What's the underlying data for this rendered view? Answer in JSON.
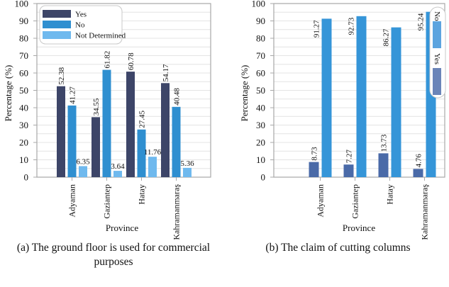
{
  "chart_data": [
    {
      "type": "bar",
      "caption": "(a) The ground floor is used for commercial purposes",
      "caption_line1": "(a) The ground floor is used for commercial",
      "caption_line2": "purposes",
      "xlabel": "Province",
      "ylabel": "Percentage (%)",
      "ylim": [
        0,
        100
      ],
      "yticks": [
        0,
        10,
        20,
        30,
        40,
        50,
        60,
        70,
        80,
        90,
        100
      ],
      "grid": true,
      "legend_position": "top-left",
      "categories": [
        "Adyaman",
        "Gaziantep",
        "Hatay",
        "Kahramanmaraş"
      ],
      "series": [
        {
          "name": "Yes",
          "color": "#3d4568",
          "values": [
            52.38,
            34.55,
            60.78,
            54.17
          ],
          "labels": [
            "52.38",
            "34.55",
            "60.78",
            "54.17"
          ]
        },
        {
          "name": "No",
          "color": "#2f8fd0",
          "values": [
            41.27,
            61.82,
            27.45,
            40.48
          ],
          "labels": [
            "41.27",
            "61.82",
            "27.45",
            "40.48"
          ]
        },
        {
          "name": "Not Determined",
          "color": "#6fb9ee",
          "values": [
            6.35,
            3.64,
            11.76,
            5.36
          ],
          "labels": [
            "6.35",
            "3.64",
            "11.76",
            "5.36"
          ]
        }
      ]
    },
    {
      "type": "bar",
      "caption": "(b) The claim of cutting columns",
      "xlabel": "Province",
      "ylabel": "Percentage (%)",
      "ylim": [
        0,
        100
      ],
      "yticks": [
        0,
        10,
        20,
        30,
        40,
        50,
        60,
        70,
        80,
        90,
        100
      ],
      "grid": true,
      "legend_position": "top-right",
      "categories": [
        "Adyaman",
        "Gaziantep",
        "Hatay",
        "Kahramanmaraş"
      ],
      "series": [
        {
          "name": "Yes",
          "color": "#4a6aa8",
          "values": [
            8.73,
            7.27,
            13.73,
            4.76
          ],
          "labels": [
            "8.73",
            "7.27",
            "13.73",
            "4.76"
          ]
        },
        {
          "name": "No",
          "color": "#3595d8",
          "values": [
            91.27,
            92.73,
            86.27,
            95.24
          ],
          "labels": [
            "91.27",
            "92.73",
            "86.27",
            "95.24"
          ]
        }
      ],
      "legend_colors": {
        "No": "#5ca4df",
        "Yes": "#6a84b8"
      }
    }
  ]
}
